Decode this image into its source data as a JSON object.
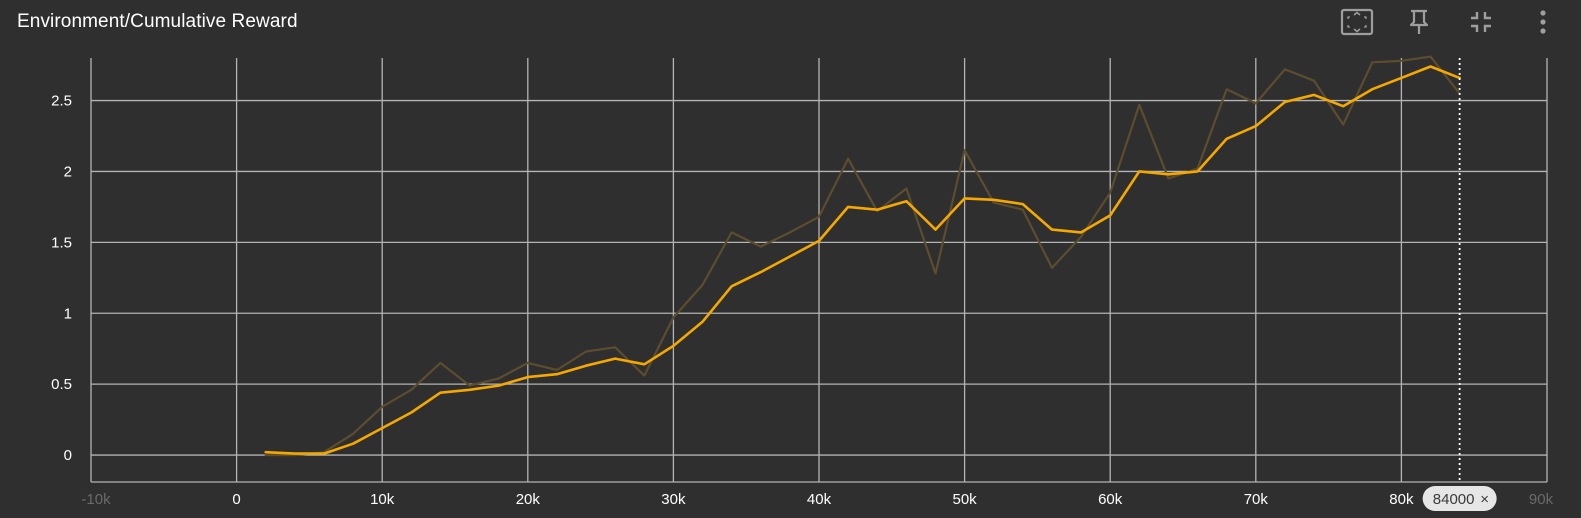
{
  "card": {
    "title": "Environment/Cumulative Reward"
  },
  "toolbar": {
    "buttons": [
      {
        "name": "fit-domain-button",
        "icon": "fit-to-screen-icon"
      },
      {
        "name": "pin-button",
        "icon": "pin-icon"
      },
      {
        "name": "collapse-button",
        "icon": "fullscreen-exit-icon"
      },
      {
        "name": "more-menu-button",
        "icon": "more-vert-icon"
      }
    ]
  },
  "colors": {
    "background": "#2f2f2f",
    "grid": "#b4b4b4",
    "smoothed": "#f5a800",
    "raw": "#5c4d2e",
    "badge_bg": "#e6e6e6"
  },
  "step_marker": {
    "label": "84000",
    "close": "×",
    "step": 84000
  },
  "chart_data": {
    "type": "line",
    "title": "Environment/Cumulative Reward",
    "xlabel": "",
    "ylabel": "",
    "xlim": [
      -10000,
      90000
    ],
    "ylim": [
      -0.19,
      2.8
    ],
    "x_ticks": [
      0,
      10000,
      20000,
      30000,
      40000,
      50000,
      60000,
      70000,
      80000
    ],
    "x_tick_labels": [
      "0",
      "10k",
      "20k",
      "30k",
      "40k",
      "50k",
      "60k",
      "70k",
      "80k"
    ],
    "x_edge_labels": [
      "-10k",
      "90k"
    ],
    "y_ticks": [
      0,
      0.5,
      1,
      1.5,
      2,
      2.5
    ],
    "y_tick_labels": [
      "0",
      "0.5",
      "1",
      "1.5",
      "2",
      "2.5"
    ],
    "grid": true,
    "x": [
      2000,
      4000,
      6000,
      8000,
      10000,
      12000,
      14000,
      16000,
      18000,
      20000,
      22000,
      24000,
      26000,
      28000,
      30000,
      32000,
      34000,
      36000,
      38000,
      40000,
      42000,
      44000,
      46000,
      48000,
      50000,
      52000,
      54000,
      56000,
      58000,
      60000,
      62000,
      64000,
      66000,
      68000,
      70000,
      72000,
      74000,
      76000,
      78000,
      80000,
      82000,
      84000
    ],
    "series": [
      {
        "name": "raw",
        "values": [
          0.0,
          0.0,
          0.02,
          0.15,
          0.34,
          0.46,
          0.65,
          0.49,
          0.54,
          0.65,
          0.6,
          0.73,
          0.76,
          0.56,
          0.97,
          1.2,
          1.57,
          1.47,
          1.57,
          1.68,
          2.09,
          1.72,
          1.88,
          1.28,
          2.15,
          1.78,
          1.73,
          1.32,
          1.54,
          1.85,
          2.47,
          1.95,
          2.02,
          2.58,
          2.48,
          2.72,
          2.64,
          2.33,
          2.77,
          2.78,
          2.81,
          2.55
        ]
      },
      {
        "name": "smoothed",
        "values": [
          0.02,
          0.01,
          0.01,
          0.08,
          0.19,
          0.3,
          0.44,
          0.46,
          0.49,
          0.55,
          0.57,
          0.63,
          0.68,
          0.64,
          0.77,
          0.94,
          1.19,
          1.29,
          1.4,
          1.51,
          1.75,
          1.73,
          1.79,
          1.59,
          1.81,
          1.8,
          1.77,
          1.59,
          1.57,
          1.69,
          2.0,
          1.98,
          2.0,
          2.23,
          2.32,
          2.49,
          2.54,
          2.46,
          2.58,
          2.66,
          2.74,
          2.66
        ]
      }
    ]
  }
}
